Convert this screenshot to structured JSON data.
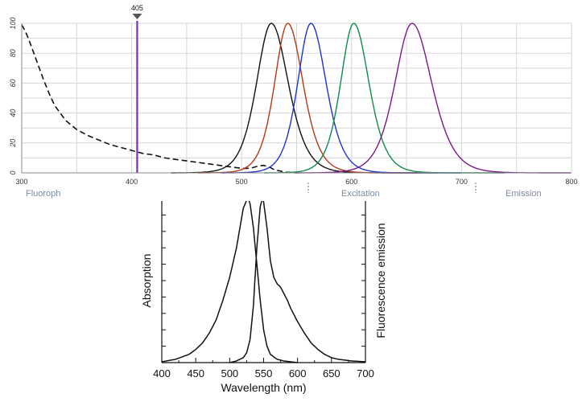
{
  "chart_data": [
    {
      "type": "line",
      "title": "",
      "xlabel": "",
      "ylabel": "",
      "xlim": [
        300,
        800
      ],
      "ylim": [
        0,
        100
      ],
      "x_ticks": [
        300,
        400,
        500,
        600,
        700,
        800
      ],
      "y_ticks": [
        0,
        20,
        40,
        60,
        80,
        100
      ],
      "grid": true,
      "legend_partial": [
        "Fluoroph",
        "Excitation",
        "Emission"
      ],
      "laser": {
        "wavelength": 405,
        "label": "405",
        "color": "#7b2fbf"
      },
      "series": [
        {
          "color": "#111111",
          "style": "dashed",
          "x": [
            300,
            303,
            306,
            310,
            315,
            320,
            325,
            330,
            340,
            350,
            360,
            370,
            380,
            390,
            400,
            410,
            420,
            430,
            440,
            450,
            460,
            470,
            480,
            490,
            500,
            505,
            510,
            515,
            520,
            525,
            530,
            540,
            550
          ],
          "y": [
            99,
            95,
            90,
            82,
            72,
            62,
            53,
            45,
            35,
            29,
            25,
            22,
            19,
            17,
            15,
            13,
            12,
            10,
            9,
            8,
            7,
            6,
            5,
            4,
            3,
            3,
            3.5,
            4.5,
            5,
            4,
            2,
            0.5,
            0
          ]
        },
        {
          "color": "#111111",
          "style": "solid",
          "peak": 527,
          "width": 19,
          "x_end": 660
        },
        {
          "color": "#b03a1a",
          "style": "solid",
          "peak": 542,
          "width": 17,
          "x_end": 680
        },
        {
          "color": "#1f35c8",
          "style": "solid",
          "peak": 563,
          "width": 17,
          "x_end": 700
        },
        {
          "color": "#0f8a4a",
          "style": "solid",
          "peak": 602,
          "width": 17,
          "x_end": 740
        },
        {
          "color": "#7a1a8a",
          "style": "solid",
          "peak": 655,
          "width": 22,
          "x_end": 800
        }
      ]
    },
    {
      "type": "line",
      "title": "",
      "xlabel": "Wavelength (nm)",
      "ylabel": "Absorption",
      "y2label": "Fluorescence emission",
      "xlim": [
        400,
        700
      ],
      "x_ticks": [
        400,
        450,
        500,
        550,
        600,
        650,
        700
      ],
      "ylim": [
        0,
        100
      ],
      "grid": false,
      "series": [
        {
          "kind": "absorption",
          "x": [
            400,
            420,
            440,
            450,
            460,
            470,
            480,
            490,
            500,
            510,
            515,
            520,
            525,
            527,
            530,
            535,
            540,
            545,
            550,
            555,
            560,
            570,
            580,
            600
          ],
          "y": [
            0.5,
            2,
            5,
            8,
            12,
            18,
            26,
            38,
            52,
            70,
            82,
            94,
            99,
            100,
            97,
            82,
            60,
            38,
            20,
            10,
            5,
            2,
            1,
            0
          ]
        },
        {
          "kind": "emission",
          "x": [
            500,
            510,
            520,
            525,
            530,
            535,
            540,
            545,
            548,
            550,
            555,
            560,
            565,
            570,
            575,
            580,
            585,
            590,
            600,
            610,
            620,
            630,
            640,
            650,
            660,
            680,
            700
          ],
          "y": [
            0,
            1,
            3,
            6,
            14,
            35,
            70,
            95,
            100,
            98,
            82,
            62,
            52,
            48,
            46,
            42,
            38,
            33,
            25,
            18,
            12,
            8,
            5,
            3,
            2,
            1,
            0.5
          ]
        }
      ]
    }
  ]
}
